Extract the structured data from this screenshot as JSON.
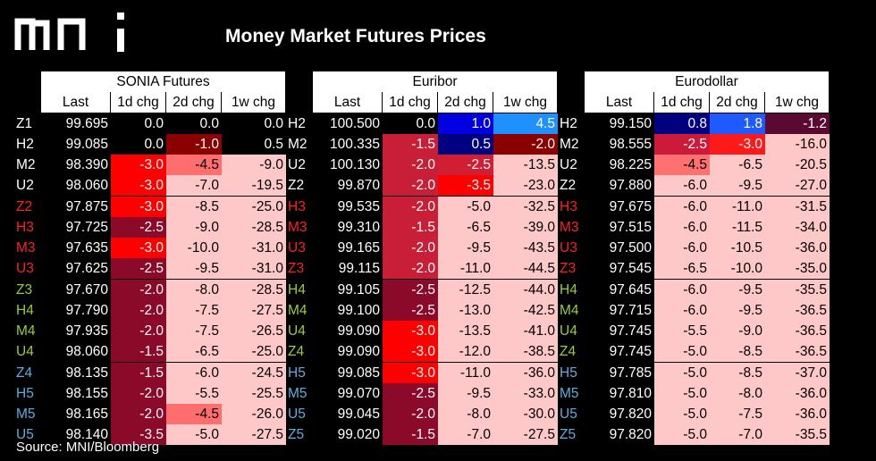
{
  "title": "Money Market Futures Prices",
  "logo_text": "mni",
  "source": "Source: MNI/Bloomberg",
  "chart_data": {
    "type": "table",
    "title": "Money Market Futures Prices",
    "column_headers": [
      "Last",
      "1d chg",
      "2d chg",
      "1w chg"
    ],
    "tables": [
      {
        "name": "SONIA Futures",
        "rows": [
          {
            "contract": "Z1",
            "last": "99.695",
            "d1": "0.0",
            "d2": "0.0",
            "w1": "0.0"
          },
          {
            "contract": "H2",
            "last": "99.085",
            "d1": "0.0",
            "d2": "-1.0",
            "w1": "0.5"
          },
          {
            "contract": "M2",
            "last": "98.390",
            "d1": "-3.0",
            "d2": "-4.5",
            "w1": "-9.0"
          },
          {
            "contract": "U2",
            "last": "98.060",
            "d1": "-3.0",
            "d2": "-7.0",
            "w1": "-19.5"
          },
          {
            "contract": "Z2",
            "last": "97.875",
            "d1": "-3.0",
            "d2": "-8.5",
            "w1": "-25.0"
          },
          {
            "contract": "H3",
            "last": "97.725",
            "d1": "-2.5",
            "d2": "-9.0",
            "w1": "-28.5"
          },
          {
            "contract": "M3",
            "last": "97.635",
            "d1": "-3.0",
            "d2": "-10.0",
            "w1": "-31.0"
          },
          {
            "contract": "U3",
            "last": "97.625",
            "d1": "-2.5",
            "d2": "-9.5",
            "w1": "-31.0"
          },
          {
            "contract": "Z3",
            "last": "97.670",
            "d1": "-2.0",
            "d2": "-8.0",
            "w1": "-28.5"
          },
          {
            "contract": "H4",
            "last": "97.790",
            "d1": "-2.0",
            "d2": "-7.5",
            "w1": "-27.5"
          },
          {
            "contract": "M4",
            "last": "97.935",
            "d1": "-2.0",
            "d2": "-7.5",
            "w1": "-26.5"
          },
          {
            "contract": "U4",
            "last": "98.060",
            "d1": "-1.5",
            "d2": "-6.5",
            "w1": "-25.0"
          },
          {
            "contract": "Z4",
            "last": "98.135",
            "d1": "-1.5",
            "d2": "-6.0",
            "w1": "-24.5"
          },
          {
            "contract": "H5",
            "last": "98.155",
            "d1": "-2.0",
            "d2": "-5.5",
            "w1": "-25.5"
          },
          {
            "contract": "M5",
            "last": "98.165",
            "d1": "-2.0",
            "d2": "-4.5",
            "w1": "-26.0"
          },
          {
            "contract": "U5",
            "last": "98.140",
            "d1": "-3.5",
            "d2": "-5.0",
            "w1": "-27.5"
          }
        ]
      },
      {
        "name": "Euribor",
        "rows": [
          {
            "contract": "H2",
            "last": "100.500",
            "d1": "0.0",
            "d2": "1.0",
            "w1": "4.5"
          },
          {
            "contract": "M2",
            "last": "100.335",
            "d1": "-1.5",
            "d2": "0.5",
            "w1": "-2.0"
          },
          {
            "contract": "U2",
            "last": "100.130",
            "d1": "-2.0",
            "d2": "-2.5",
            "w1": "-13.5"
          },
          {
            "contract": "Z2",
            "last": "99.870",
            "d1": "-2.0",
            "d2": "-3.5",
            "w1": "-23.0"
          },
          {
            "contract": "H3",
            "last": "99.535",
            "d1": "-2.0",
            "d2": "-5.0",
            "w1": "-32.5"
          },
          {
            "contract": "M3",
            "last": "99.310",
            "d1": "-1.5",
            "d2": "-6.5",
            "w1": "-39.0"
          },
          {
            "contract": "U3",
            "last": "99.165",
            "d1": "-2.0",
            "d2": "-9.5",
            "w1": "-43.5"
          },
          {
            "contract": "Z3",
            "last": "99.115",
            "d1": "-2.0",
            "d2": "-11.0",
            "w1": "-44.5"
          },
          {
            "contract": "H4",
            "last": "99.105",
            "d1": "-2.5",
            "d2": "-12.5",
            "w1": "-44.0"
          },
          {
            "contract": "M4",
            "last": "99.100",
            "d1": "-2.5",
            "d2": "-13.0",
            "w1": "-42.5"
          },
          {
            "contract": "U4",
            "last": "99.090",
            "d1": "-3.0",
            "d2": "-13.5",
            "w1": "-41.0"
          },
          {
            "contract": "Z4",
            "last": "99.090",
            "d1": "-3.0",
            "d2": "-12.0",
            "w1": "-38.5"
          },
          {
            "contract": "H5",
            "last": "99.085",
            "d1": "-3.0",
            "d2": "-11.0",
            "w1": "-36.0"
          },
          {
            "contract": "M5",
            "last": "99.070",
            "d1": "-2.5",
            "d2": "-9.5",
            "w1": "-33.0"
          },
          {
            "contract": "U5",
            "last": "99.045",
            "d1": "-2.0",
            "d2": "-8.0",
            "w1": "-30.0"
          },
          {
            "contract": "Z5",
            "last": "99.020",
            "d1": "-1.5",
            "d2": "-7.0",
            "w1": "-27.5"
          }
        ]
      },
      {
        "name": "Eurodollar",
        "rows": [
          {
            "contract": "H2",
            "last": "99.150",
            "d1": "0.8",
            "d2": "1.8",
            "w1": "-1.2"
          },
          {
            "contract": "M2",
            "last": "98.555",
            "d1": "-2.5",
            "d2": "-3.0",
            "w1": "-16.0"
          },
          {
            "contract": "U2",
            "last": "98.225",
            "d1": "-4.5",
            "d2": "-6.5",
            "w1": "-20.5"
          },
          {
            "contract": "Z2",
            "last": "97.880",
            "d1": "-6.0",
            "d2": "-9.5",
            "w1": "-27.0"
          },
          {
            "contract": "H3",
            "last": "97.675",
            "d1": "-6.0",
            "d2": "-11.0",
            "w1": "-31.5"
          },
          {
            "contract": "M3",
            "last": "97.515",
            "d1": "-6.0",
            "d2": "-11.5",
            "w1": "-34.0"
          },
          {
            "contract": "U3",
            "last": "97.500",
            "d1": "-6.0",
            "d2": "-10.5",
            "w1": "-36.0"
          },
          {
            "contract": "Z3",
            "last": "97.545",
            "d1": "-6.5",
            "d2": "-10.0",
            "w1": "-35.0"
          },
          {
            "contract": "H4",
            "last": "97.645",
            "d1": "-6.0",
            "d2": "-9.5",
            "w1": "-35.5"
          },
          {
            "contract": "M4",
            "last": "97.715",
            "d1": "-6.0",
            "d2": "-9.5",
            "w1": "-36.5"
          },
          {
            "contract": "U4",
            "last": "97.745",
            "d1": "-5.5",
            "d2": "-9.0",
            "w1": "-36.5"
          },
          {
            "contract": "Z4",
            "last": "97.745",
            "d1": "-5.0",
            "d2": "-8.5",
            "w1": "-36.5"
          },
          {
            "contract": "H5",
            "last": "97.785",
            "d1": "-5.0",
            "d2": "-8.5",
            "w1": "-37.0"
          },
          {
            "contract": "M5",
            "last": "97.810",
            "d1": "-5.0",
            "d2": "-8.0",
            "w1": "-36.0"
          },
          {
            "contract": "U5",
            "last": "97.820",
            "d1": "-5.0",
            "d2": "-7.5",
            "w1": "-36.0"
          },
          {
            "contract": "Z5",
            "last": "97.820",
            "d1": "-5.0",
            "d2": "-7.0",
            "w1": "-35.5"
          }
        ]
      }
    ],
    "cell_colors": {
      "d1": [
        [
          "#000000",
          "#000000",
          "#ff0000",
          "#ff0000",
          "#ff0000",
          "#8b0a2a",
          "#ff0000",
          "#8b0a2a",
          "#8b0a2a",
          "#8b0a2a",
          "#8b0a2a",
          "#8b0a2a",
          "#8b0a2a",
          "#8b0a2a",
          "#8b0a2a",
          "#8b0a2a"
        ],
        [
          "#000000",
          "#c81e37",
          "#c81e37",
          "#c81e37",
          "#c81e37",
          "#c81e37",
          "#c81e37",
          "#c81e37",
          "#8b0a2a",
          "#8b0a2a",
          "#ff0000",
          "#ff0000",
          "#ff0000",
          "#8b0a2a",
          "#8b0a2a",
          "#8b0a2a"
        ],
        [
          "#000080",
          "#cc1a3a",
          "#ff7070",
          "#ffc8c8",
          "#ffc8c8",
          "#ffc8c8",
          "#ffc8c8",
          "#ffc8c8",
          "#ffc8c8",
          "#ffc8c8",
          "#ffc8c8",
          "#ffc8c8",
          "#ffc8c8",
          "#ffc8c8",
          "#ffc8c8",
          "#ffc8c8"
        ]
      ],
      "d2": [
        [
          "#000000",
          "#8b0000",
          "#ff6e6e",
          "#ffc8c8",
          "#ffc8c8",
          "#ffc8c8",
          "#ffc8c8",
          "#ffc8c8",
          "#ffc8c8",
          "#ffc8c8",
          "#ffc8c8",
          "#ffc8c8",
          "#ffc8c8",
          "#ffc8c8",
          "#ff6e6e",
          "#ffc8c8"
        ],
        [
          "#0000e0",
          "#000080",
          "#d21e32",
          "#ff0000",
          "#ffc8c8",
          "#ffc8c8",
          "#ffc8c8",
          "#ffc8c8",
          "#ffc8c8",
          "#ffc8c8",
          "#ffc8c8",
          "#ffc8c8",
          "#ffc8c8",
          "#ffc8c8",
          "#ffc8c8",
          "#ffc8c8"
        ],
        [
          "#1e5aff",
          "#ff1a1a",
          "#ffc8c8",
          "#ffc8c8",
          "#ffc8c8",
          "#ffc8c8",
          "#ffc8c8",
          "#ffc8c8",
          "#ffc8c8",
          "#ffc8c8",
          "#ffc8c8",
          "#ffc8c8",
          "#ffc8c8",
          "#ffc8c8",
          "#ffc8c8",
          "#ffc8c8"
        ]
      ],
      "w1": [
        [
          "#000000",
          "#000000",
          "#ffc8c8",
          "#ffc8c8",
          "#ffc8c8",
          "#ffc8c8",
          "#ffc8c8",
          "#ffc8c8",
          "#ffc8c8",
          "#ffc8c8",
          "#ffc8c8",
          "#ffc8c8",
          "#ffc8c8",
          "#ffc8c8",
          "#ffc8c8",
          "#ffc8c8"
        ],
        [
          "#1e90ff",
          "#8b0000",
          "#ffc8c8",
          "#ffc8c8",
          "#ffc8c8",
          "#ffc8c8",
          "#ffc8c8",
          "#ffc8c8",
          "#ffc8c8",
          "#ffc8c8",
          "#ffc8c8",
          "#ffc8c8",
          "#ffc8c8",
          "#ffc8c8",
          "#ffc8c8",
          "#ffc8c8"
        ],
        [
          "#5a0a32",
          "#ffc8c8",
          "#ffc8c8",
          "#ffc8c8",
          "#ffc8c8",
          "#ffc8c8",
          "#ffc8c8",
          "#ffc8c8",
          "#ffc8c8",
          "#ffc8c8",
          "#ffc8c8",
          "#ffc8c8",
          "#ffc8c8",
          "#ffc8c8",
          "#ffc8c8",
          "#ffc8c8"
        ]
      ]
    },
    "contract_label_colors": [
      "#ffffff",
      "#ffffff",
      "#ffffff",
      "#ffffff",
      "#ff2020",
      "#ff2020",
      "#ff2020",
      "#ff2020",
      "#9acd32",
      "#9acd32",
      "#9acd32",
      "#9acd32",
      "#5aaee0",
      "#5aaee0",
      "#5aaee0",
      "#5aaee0"
    ],
    "euribor_label_colors": [
      "#ffffff",
      "#ffffff",
      "#ffffff",
      "#ffffff",
      "#ff2020",
      "#ff2020",
      "#ff2020",
      "#ff2020",
      "#9acd32",
      "#9acd32",
      "#9acd32",
      "#9acd32",
      "#5aaee0",
      "#5aaee0",
      "#5aaee0",
      "#5aaee0"
    ]
  }
}
